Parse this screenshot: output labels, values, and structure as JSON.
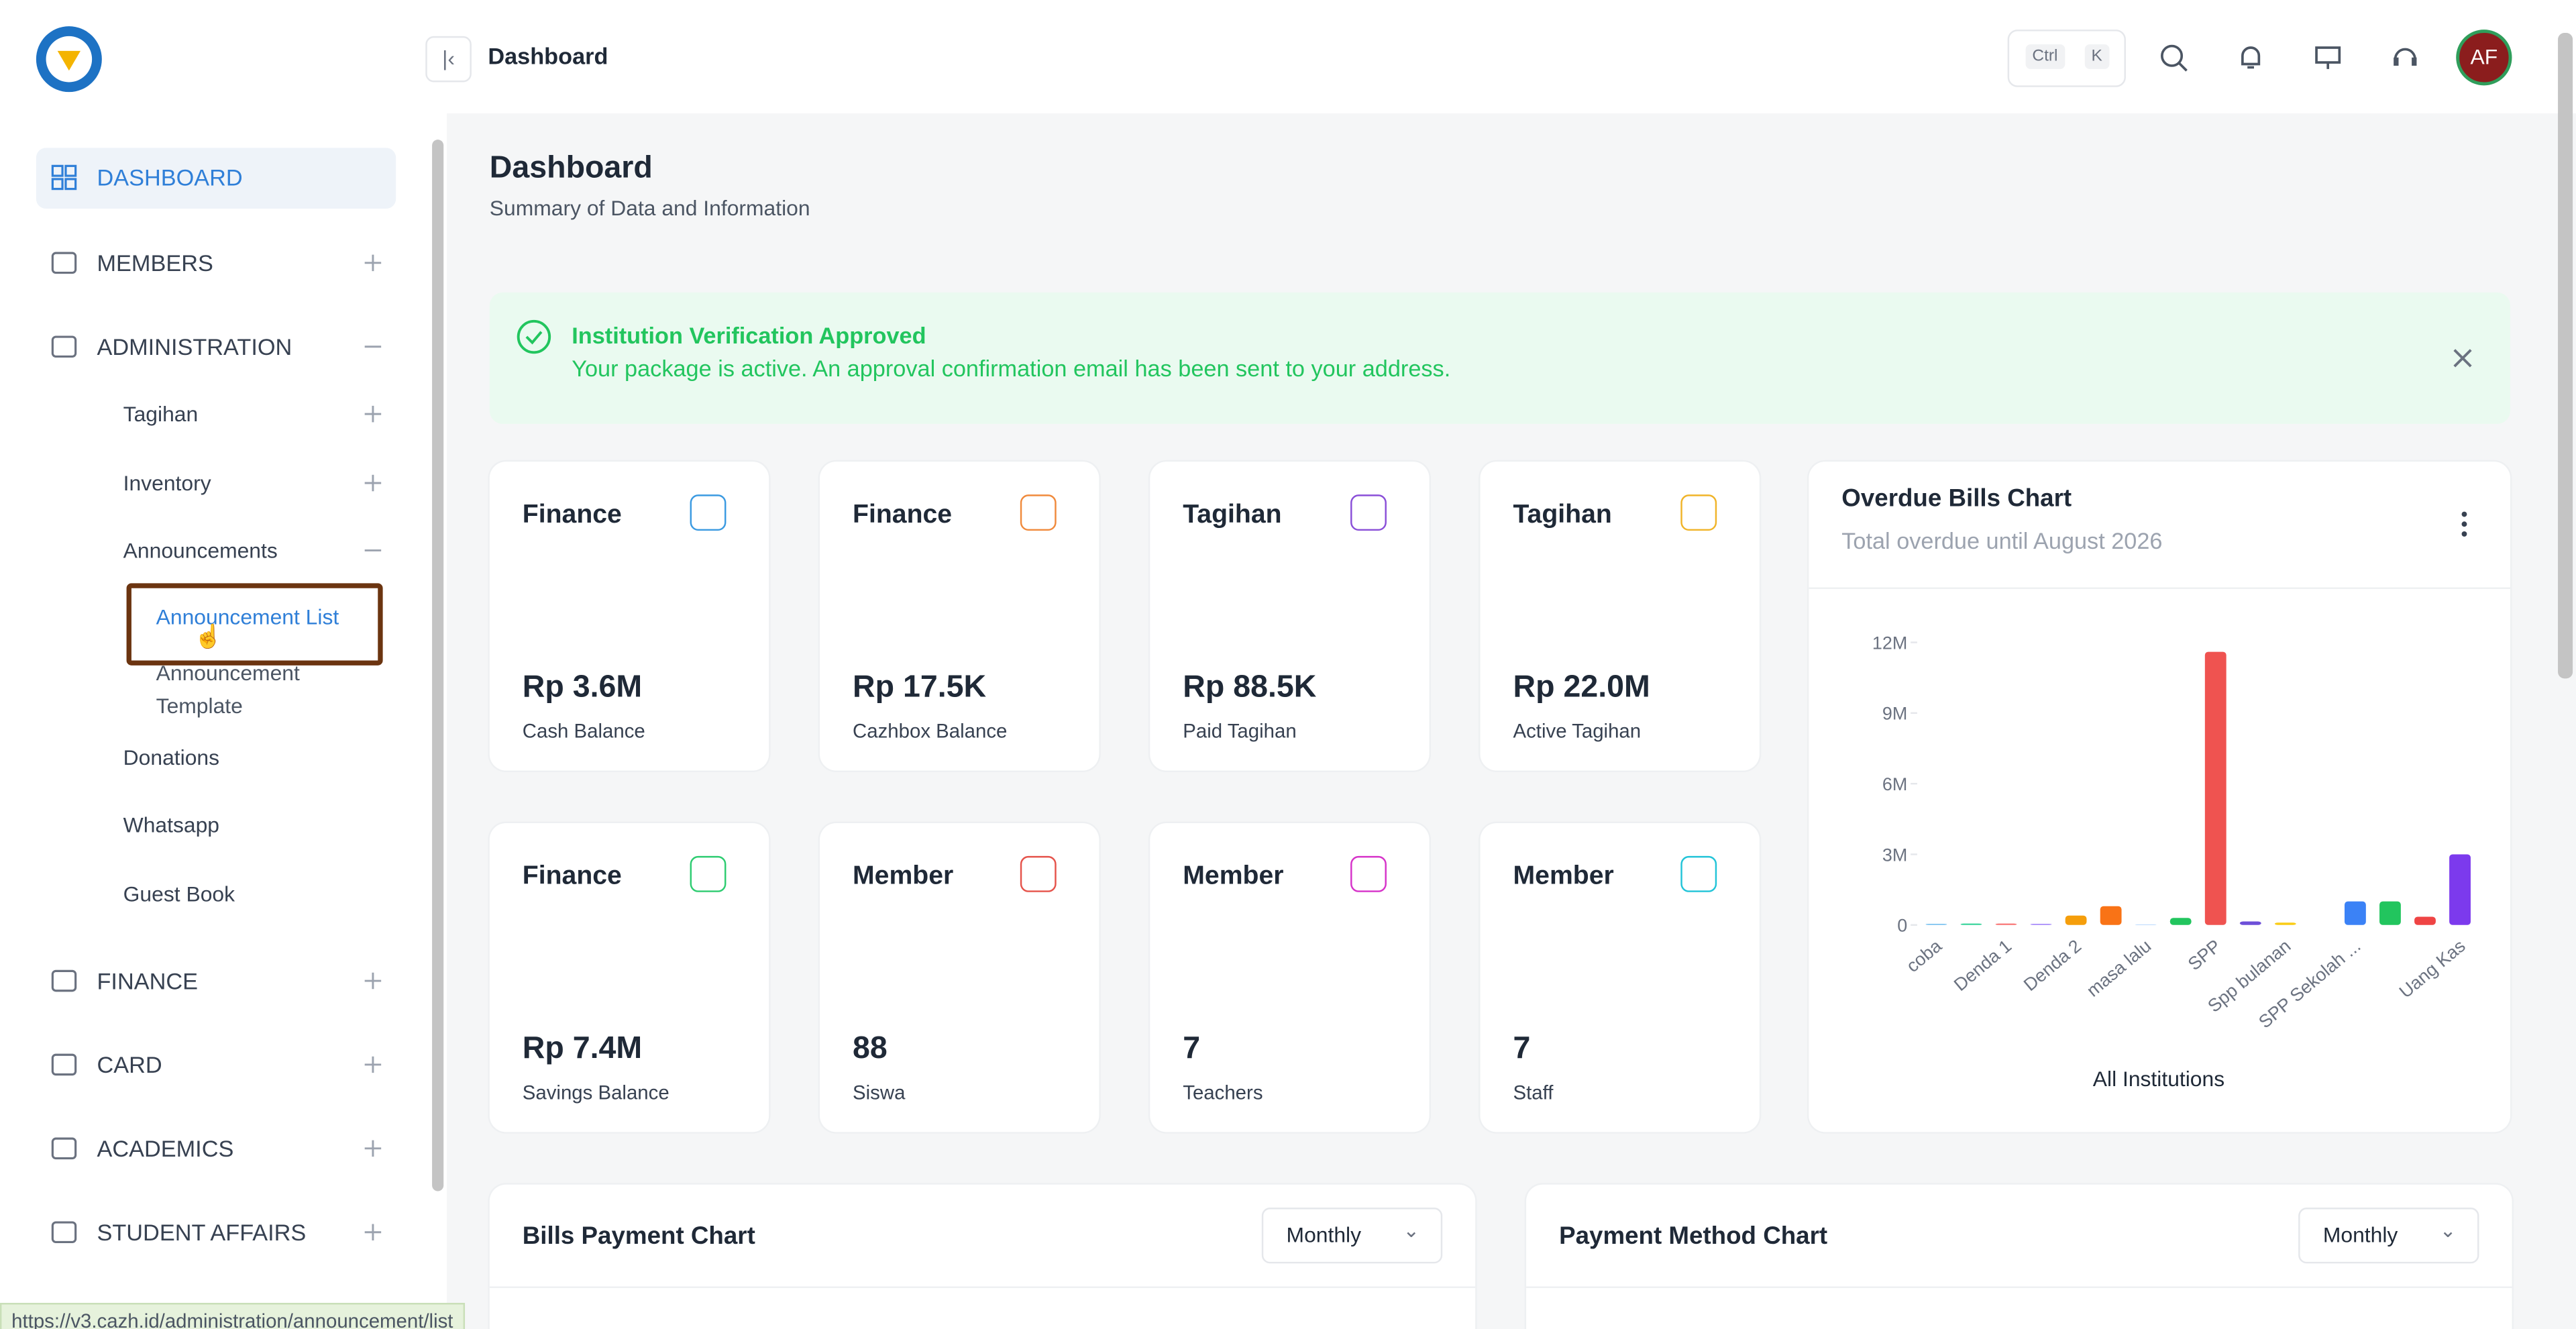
{
  "topbar": {
    "page": "Dashboard",
    "shortcut": [
      "Ctrl",
      "K"
    ],
    "avatar": "AF"
  },
  "sidebar": {
    "items": [
      "DASHBOARD",
      "MEMBERS",
      "ADMINISTRATION",
      "FINANCE",
      "CARD",
      "ACADEMICS",
      "STUDENT AFFAIRS"
    ],
    "admin_items": [
      "Tagihan",
      "Inventory",
      "Announcements",
      "Donations",
      "Whatsapp",
      "Guest Book"
    ],
    "announcement_items": [
      "Announcement List",
      "Announcement Template"
    ]
  },
  "header": {
    "title": "Dashboard",
    "subtitle": "Summary of Data and Information"
  },
  "alert": {
    "title": "Institution Verification Approved",
    "message": "Your package is active. An approval confirmation email has been sent to your address."
  },
  "cards": [
    {
      "category": "Finance",
      "value": "Rp 3.6M",
      "label": "Cash Balance"
    },
    {
      "category": "Finance",
      "value": "Rp 17.5K",
      "label": "Cazhbox Balance"
    },
    {
      "category": "Tagihan",
      "value": "Rp 88.5K",
      "label": "Paid Tagihan"
    },
    {
      "category": "Tagihan",
      "value": "Rp 22.0M",
      "label": "Active Tagihan"
    },
    {
      "category": "Finance",
      "value": "Rp 7.4M",
      "label": "Savings Balance"
    },
    {
      "category": "Member",
      "value": "88",
      "label": "Siswa"
    },
    {
      "category": "Member",
      "value": "7",
      "label": "Teachers"
    },
    {
      "category": "Member",
      "value": "7",
      "label": "Staff"
    }
  ],
  "chart_data": {
    "type": "bar",
    "title": "Overdue Bills Chart",
    "subtitle": "Total overdue until August 2026",
    "xlabel": "All Institutions",
    "categories": [
      "coba",
      null,
      "Denda 1",
      null,
      "Denda 2",
      null,
      "masa lalu",
      null,
      "SPP",
      null,
      "Spp bulanan",
      null,
      "SPP Sekolah ...",
      null,
      null,
      "Uang Kas"
    ],
    "values": [
      50000,
      60000,
      60000,
      50000,
      400000,
      800000,
      20000,
      300000,
      11600000,
      150000,
      100000,
      0,
      1000000,
      1000000,
      350000,
      3000000
    ],
    "colors": [
      "#7dc3f0",
      "#34d399",
      "#f87171",
      "#a78bfa",
      "#f59e0b",
      "#f97316",
      "#93c5fd",
      "#22c55e",
      "#ef5350",
      "#6d4fd8",
      "#facc15",
      "#94a3b8",
      "#3b82f6",
      "#22c55e",
      "#ef4444",
      "#7c3aed"
    ],
    "ylim": [
      0,
      12000000
    ],
    "yticks": [
      0,
      {
        "value": 3000000,
        "label": "3M"
      },
      {
        "value": 6000000,
        "label": "6M"
      },
      {
        "value": 9000000,
        "label": "9M"
      },
      {
        "value": 12000000,
        "label": "12M"
      }
    ]
  },
  "bottom_cards": [
    {
      "title": "Bills Payment Chart",
      "period": "Monthly"
    },
    {
      "title": "Payment Method Chart",
      "period": "Monthly"
    }
  ],
  "status_url": "https://v3.cazh.id/administration/announcement/list"
}
